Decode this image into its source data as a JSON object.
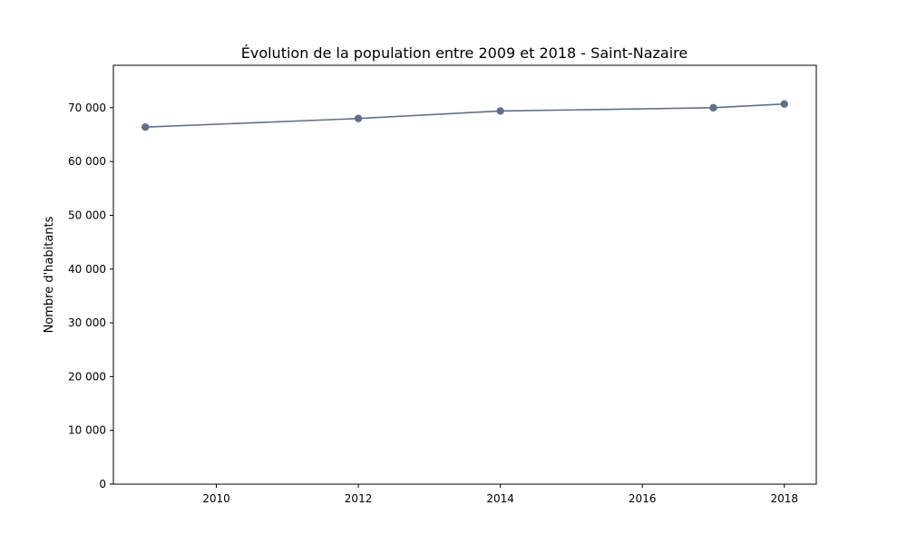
{
  "colors": {
    "series": "#5f7186",
    "axis": "#000000",
    "background": "#ffffff"
  },
  "chart_data": {
    "type": "line",
    "title": "Évolution de la population entre 2009 et 2018 - Saint-Nazaire",
    "xlabel": "",
    "ylabel": "Nombre d'habitants",
    "xlim": [
      2008.55,
      2018.45
    ],
    "ylim": [
      0,
      77900
    ],
    "grid": false,
    "xticks": [
      2010,
      2012,
      2014,
      2016,
      2018
    ],
    "yticks": [
      {
        "value": 0,
        "label": "0"
      },
      {
        "value": 10000,
        "label": "10 000"
      },
      {
        "value": 20000,
        "label": "20 000"
      },
      {
        "value": 30000,
        "label": "30 000"
      },
      {
        "value": 40000,
        "label": "40 000"
      },
      {
        "value": 50000,
        "label": "50 000"
      },
      {
        "value": 60000,
        "label": "60 000"
      },
      {
        "value": 70000,
        "label": "70 000"
      }
    ],
    "series": [
      {
        "x": [
          2009,
          2012,
          2014,
          2017,
          2018
        ],
        "y": [
          66400,
          68000,
          69400,
          70000,
          70700
        ],
        "marker": "circle"
      }
    ]
  }
}
